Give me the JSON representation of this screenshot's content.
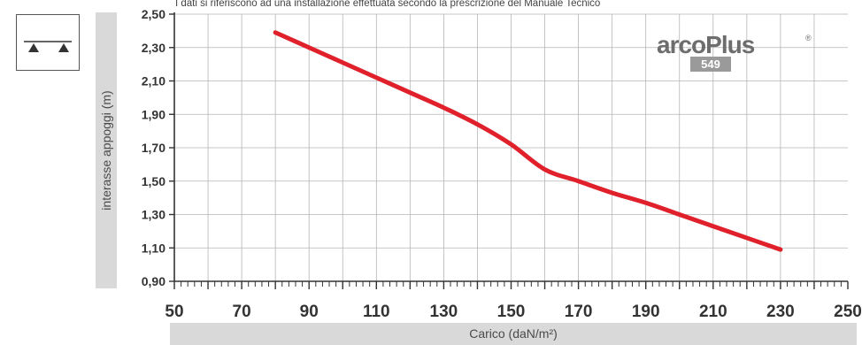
{
  "note": "I dati si riferiscono ad una installazione effettuata secondo la prescrizione del Manuale Tecnico",
  "logo": {
    "main": "arcoPlus",
    "registered": "®",
    "number": "549"
  },
  "support_icon": "beam-on-two-supports-icon",
  "colors": {
    "series": "#e0202a",
    "band": "#d9d9d9",
    "grid": "#b5b5b5"
  },
  "chart_data": {
    "type": "line",
    "xlabel": "Carico (daN/m²)",
    "ylabel": "interasse appoggi (m)",
    "xlim": [
      50,
      250
    ],
    "ylim": [
      0.9,
      2.5
    ],
    "xticks": [
      "50",
      "70",
      "90",
      "110",
      "130",
      "150",
      "170",
      "190",
      "210",
      "230",
      "250"
    ],
    "yticks": [
      "0,90",
      "1,10",
      "1,30",
      "1,50",
      "1,70",
      "1,90",
      "2,10",
      "2,30",
      "2,50"
    ],
    "grid": true,
    "series": [
      {
        "x": [
          80,
          90,
          100,
          110,
          120,
          130,
          140,
          150,
          160,
          170,
          180,
          190,
          200,
          210,
          220,
          230
        ],
        "y": [
          2.39,
          2.3,
          2.21,
          2.12,
          2.03,
          1.94,
          1.84,
          1.72,
          1.57,
          1.5,
          1.43,
          1.37,
          1.3,
          1.23,
          1.16,
          1.09
        ]
      }
    ]
  }
}
